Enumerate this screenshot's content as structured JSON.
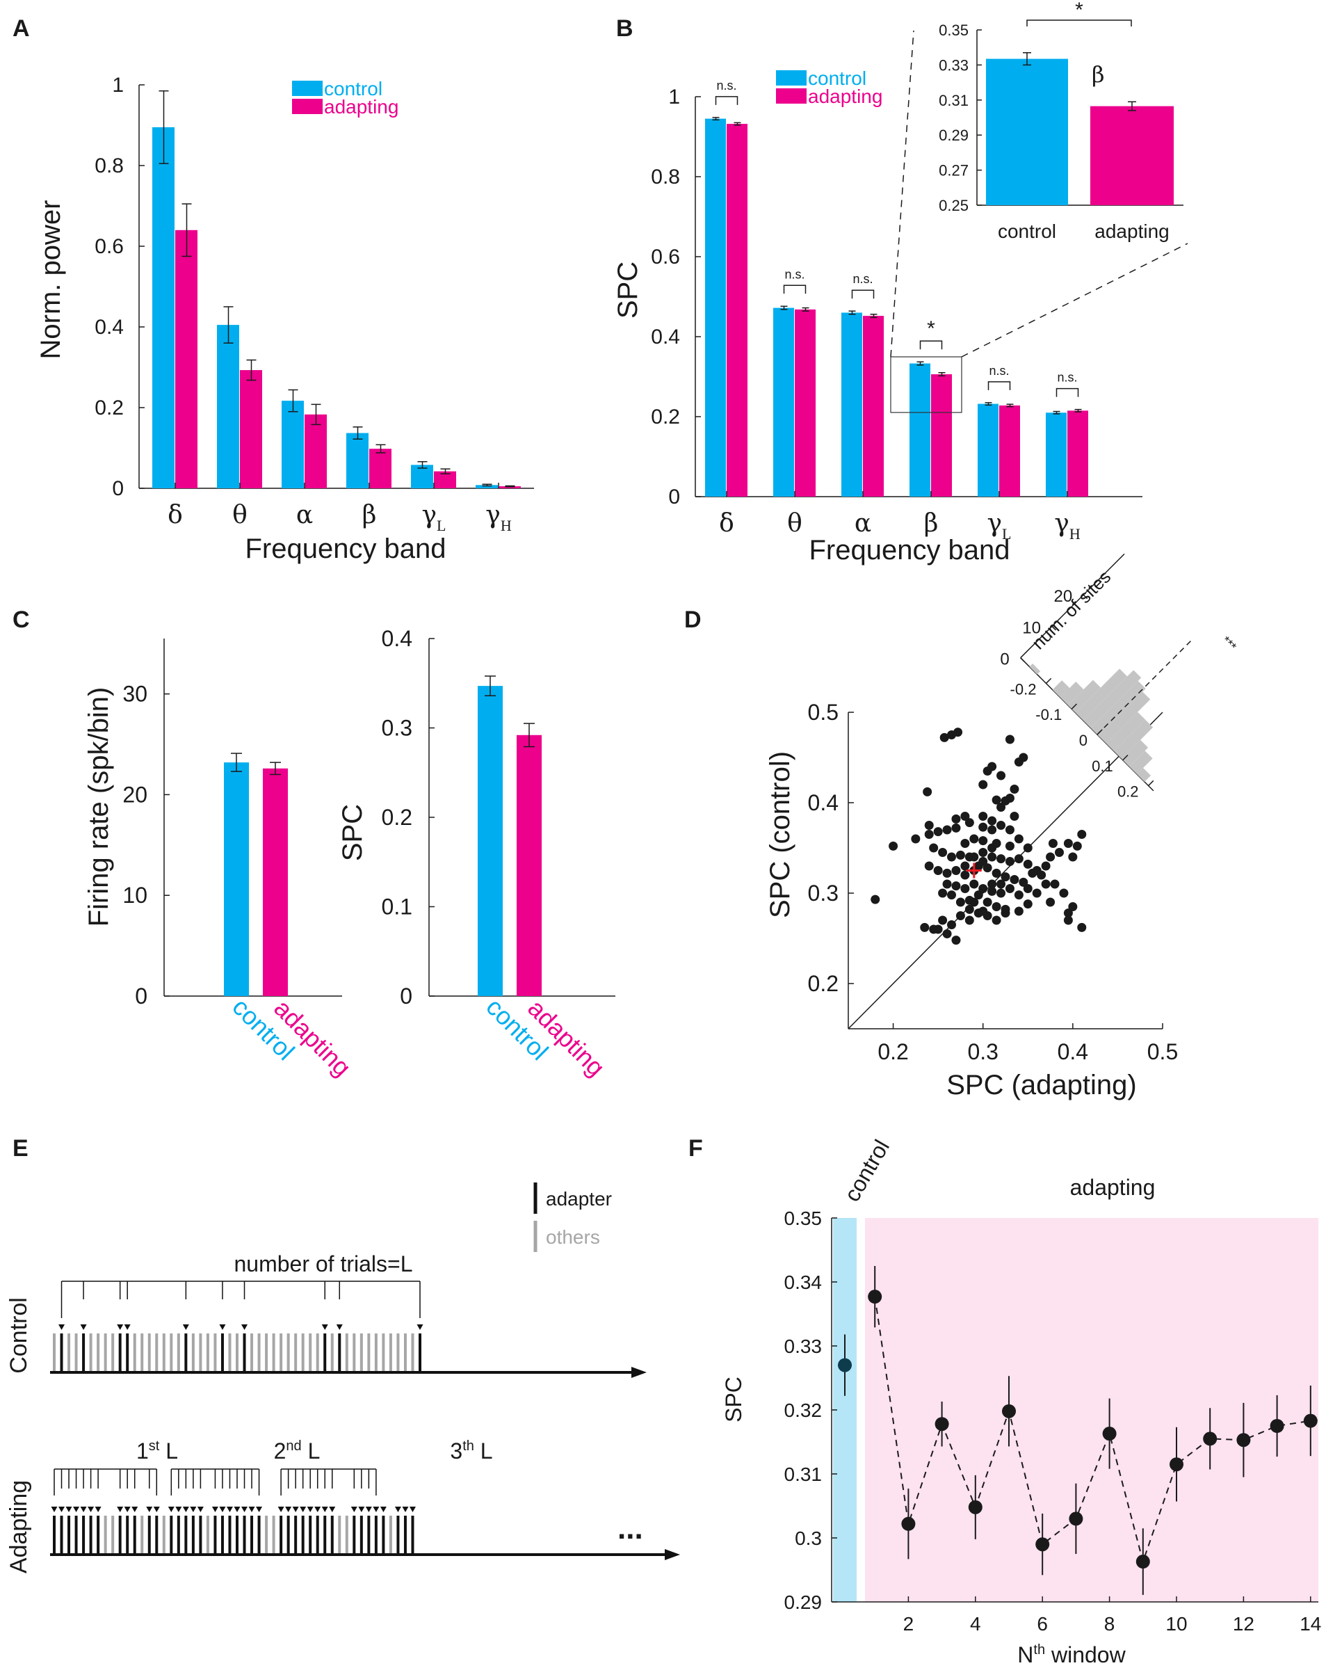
{
  "colors": {
    "control": "#00aeef",
    "adapting": "#ec008c",
    "control_band": "#b4e6f7",
    "adapting_band": "#fde2f0",
    "points": "#1a1a1a",
    "mean": "#ee1c25",
    "hist": "#c4c4c4",
    "trial_others": "#a6a6a6"
  },
  "panels": {
    "A": "A",
    "B": "B",
    "C": "C",
    "D": "D",
    "E": "E",
    "F": "F"
  },
  "bands": [
    {
      "sym": "δ",
      "sub": ""
    },
    {
      "sym": "θ",
      "sub": ""
    },
    {
      "sym": "α",
      "sub": ""
    },
    {
      "sym": "β",
      "sub": ""
    },
    {
      "sym": "γ",
      "sub": "L"
    },
    {
      "sym": "γ",
      "sub": "H"
    }
  ],
  "chart_data": [
    {
      "panel": "A",
      "type": "bar",
      "xlabel": "Frequency band",
      "ylabel": "Norm. power",
      "ylim": [
        0,
        1
      ],
      "yticks": [
        0,
        0.2,
        0.4,
        0.6,
        0.8,
        1
      ],
      "ytick_labels": [
        "0",
        "0.2",
        "0.4",
        "0.6",
        "0.8",
        "1"
      ],
      "categories": [
        "δ",
        "θ",
        "α",
        "β",
        "γL",
        "γH"
      ],
      "legend": [
        "control",
        "adapting"
      ],
      "series": [
        {
          "name": "control",
          "values": [
            0.895,
            0.405,
            0.217,
            0.137,
            0.058,
            0.008
          ],
          "errors": [
            0.09,
            0.045,
            0.027,
            0.015,
            0.008,
            0.002
          ]
        },
        {
          "name": "adapting",
          "values": [
            0.64,
            0.293,
            0.183,
            0.098,
            0.042,
            0.005
          ],
          "errors": [
            0.065,
            0.025,
            0.025,
            0.01,
            0.006,
            0.001
          ]
        }
      ]
    },
    {
      "panel": "B",
      "type": "bar",
      "xlabel": "Frequency band",
      "ylabel": "SPC",
      "ylim": [
        0,
        1
      ],
      "yticks": [
        0,
        0.2,
        0.4,
        0.6,
        0.8,
        1
      ],
      "ytick_labels": [
        "0",
        "0.2",
        "0.4",
        "0.6",
        "0.8",
        "1"
      ],
      "categories": [
        "δ",
        "θ",
        "α",
        "β",
        "γL",
        "γH"
      ],
      "legend": [
        "control",
        "adapting"
      ],
      "series": [
        {
          "name": "control",
          "values": [
            0.945,
            0.472,
            0.46,
            0.333,
            0.232,
            0.21
          ],
          "errors": [
            0.003,
            0.004,
            0.004,
            0.004,
            0.003,
            0.003
          ]
        },
        {
          "name": "adapting",
          "values": [
            0.932,
            0.468,
            0.452,
            0.306,
            0.228,
            0.215
          ],
          "errors": [
            0.003,
            0.004,
            0.004,
            0.004,
            0.003,
            0.003
          ]
        }
      ],
      "significance": [
        "n.s.",
        "n.s.",
        "n.s.",
        "*",
        "n.s.",
        "n.s."
      ],
      "inset": {
        "band_label": "β",
        "ylim": [
          0.25,
          0.35
        ],
        "yticks": [
          0.25,
          0.27,
          0.29,
          0.31,
          0.33,
          0.35
        ],
        "ytick_labels": [
          "0.25",
          "0.27",
          "0.29",
          "0.31",
          "0.33",
          "0.35"
        ],
        "categories": [
          "control",
          "adapting"
        ],
        "values": [
          0.3335,
          0.3065
        ],
        "errors": [
          0.0035,
          0.0025
        ],
        "significance": "*"
      }
    },
    {
      "panel": "C-left",
      "type": "bar",
      "ylabel": "Firing rate (spk/bin)",
      "ylim": [
        0,
        35.5
      ],
      "yticks": [
        0,
        10,
        20,
        30
      ],
      "ytick_labels": [
        "0",
        "10",
        "20",
        "30"
      ],
      "categories": [
        "control",
        "adapting"
      ],
      "values": [
        23.2,
        22.6
      ],
      "errors": [
        0.9,
        0.6
      ]
    },
    {
      "panel": "C-right",
      "type": "bar",
      "ylabel": "SPC",
      "ylim": [
        0,
        0.4
      ],
      "yticks": [
        0,
        0.1,
        0.2,
        0.3,
        0.4
      ],
      "ytick_labels": [
        "0",
        "0.1",
        "0.2",
        "0.3",
        "0.4"
      ],
      "categories": [
        "control",
        "adapting"
      ],
      "values": [
        0.347,
        0.292
      ],
      "errors": [
        0.011,
        0.013
      ]
    },
    {
      "panel": "D",
      "type": "scatter",
      "xlabel": "SPC (adapting)",
      "ylabel": "SPC (control)",
      "xlim": [
        0.15,
        0.5
      ],
      "ylim": [
        0.15,
        0.5
      ],
      "xticks": [
        0.2,
        0.3,
        0.4,
        0.5
      ],
      "xtick_labels": [
        "0.2",
        "0.3",
        "0.4",
        "0.5"
      ],
      "yticks": [
        0.2,
        0.3,
        0.4,
        0.5
      ],
      "ytick_labels": [
        "0.2",
        "0.3",
        "0.4",
        "0.5"
      ],
      "mean_marker": [
        0.29,
        0.325
      ],
      "points": [
        [
          0.18,
          0.293
        ],
        [
          0.265,
          0.475
        ],
        [
          0.257,
          0.472
        ],
        [
          0.272,
          0.478
        ],
        [
          0.33,
          0.47
        ],
        [
          0.34,
          0.445
        ],
        [
          0.345,
          0.45
        ],
        [
          0.3,
          0.42
        ],
        [
          0.305,
          0.435
        ],
        [
          0.32,
          0.43
        ],
        [
          0.31,
          0.44
        ],
        [
          0.335,
          0.415
        ],
        [
          0.238,
          0.412
        ],
        [
          0.32,
          0.395
        ],
        [
          0.33,
          0.405
        ],
        [
          0.315,
          0.403
        ],
        [
          0.28,
          0.385
        ],
        [
          0.225,
          0.36
        ],
        [
          0.2,
          0.352
        ],
        [
          0.27,
          0.382
        ],
        [
          0.325,
          0.402
        ],
        [
          0.335,
          0.385
        ],
        [
          0.31,
          0.38
        ],
        [
          0.3,
          0.385
        ],
        [
          0.285,
          0.378
        ],
        [
          0.32,
          0.375
        ],
        [
          0.33,
          0.37
        ],
        [
          0.24,
          0.365
        ],
        [
          0.25,
          0.368
        ],
        [
          0.26,
          0.37
        ],
        [
          0.27,
          0.372
        ],
        [
          0.3,
          0.373
        ],
        [
          0.31,
          0.37
        ],
        [
          0.29,
          0.36
        ],
        [
          0.28,
          0.355
        ],
        [
          0.315,
          0.355
        ],
        [
          0.33,
          0.352
        ],
        [
          0.34,
          0.36
        ],
        [
          0.35,
          0.35
        ],
        [
          0.245,
          0.35
        ],
        [
          0.255,
          0.345
        ],
        [
          0.265,
          0.34
        ],
        [
          0.275,
          0.342
        ],
        [
          0.285,
          0.34
        ],
        [
          0.3,
          0.345
        ],
        [
          0.31,
          0.34
        ],
        [
          0.32,
          0.338
        ],
        [
          0.33,
          0.335
        ],
        [
          0.34,
          0.338
        ],
        [
          0.35,
          0.332
        ],
        [
          0.36,
          0.325
        ],
        [
          0.37,
          0.33
        ],
        [
          0.378,
          0.355
        ],
        [
          0.385,
          0.345
        ],
        [
          0.395,
          0.355
        ],
        [
          0.405,
          0.352
        ],
        [
          0.41,
          0.365
        ],
        [
          0.4,
          0.34
        ],
        [
          0.375,
          0.34
        ],
        [
          0.24,
          0.33
        ],
        [
          0.25,
          0.325
        ],
        [
          0.26,
          0.322
        ],
        [
          0.27,
          0.325
        ],
        [
          0.28,
          0.33
        ],
        [
          0.295,
          0.33
        ],
        [
          0.305,
          0.328
        ],
        [
          0.315,
          0.322
        ],
        [
          0.325,
          0.318
        ],
        [
          0.335,
          0.315
        ],
        [
          0.345,
          0.312
        ],
        [
          0.355,
          0.322
        ],
        [
          0.365,
          0.32
        ],
        [
          0.37,
          0.31
        ],
        [
          0.26,
          0.31
        ],
        [
          0.27,
          0.308
        ],
        [
          0.28,
          0.305
        ],
        [
          0.29,
          0.31
        ],
        [
          0.3,
          0.305
        ],
        [
          0.31,
          0.302
        ],
        [
          0.32,
          0.3
        ],
        [
          0.33,
          0.305
        ],
        [
          0.34,
          0.298
        ],
        [
          0.35,
          0.305
        ],
        [
          0.36,
          0.3
        ],
        [
          0.375,
          0.29
        ],
        [
          0.38,
          0.31
        ],
        [
          0.39,
          0.3
        ],
        [
          0.395,
          0.278
        ],
        [
          0.4,
          0.285
        ],
        [
          0.255,
          0.3
        ],
        [
          0.265,
          0.298
        ],
        [
          0.275,
          0.29
        ],
        [
          0.285,
          0.292
        ],
        [
          0.295,
          0.298
        ],
        [
          0.305,
          0.29
        ],
        [
          0.315,
          0.285
        ],
        [
          0.325,
          0.282
        ],
        [
          0.34,
          0.28
        ],
        [
          0.35,
          0.288
        ],
        [
          0.235,
          0.262
        ],
        [
          0.245,
          0.26
        ],
        [
          0.255,
          0.27
        ],
        [
          0.265,
          0.265
        ],
        [
          0.275,
          0.275
        ],
        [
          0.285,
          0.27
        ],
        [
          0.295,
          0.278
        ],
        [
          0.305,
          0.275
        ],
        [
          0.315,
          0.27
        ],
        [
          0.325,
          0.278
        ],
        [
          0.27,
          0.248
        ],
        [
          0.26,
          0.255
        ],
        [
          0.25,
          0.26
        ],
        [
          0.285,
          0.282
        ],
        [
          0.3,
          0.28
        ],
        [
          0.31,
          0.31
        ],
        [
          0.32,
          0.31
        ],
        [
          0.29,
          0.29
        ],
        [
          0.28,
          0.32
        ],
        [
          0.29,
          0.325
        ],
        [
          0.3,
          0.335
        ],
        [
          0.31,
          0.35
        ],
        [
          0.3,
          0.358
        ],
        [
          0.29,
          0.34
        ],
        [
          0.41,
          0.262
        ],
        [
          0.395,
          0.27
        ],
        [
          0.24,
          0.375
        ]
      ],
      "inset_histogram": {
        "axis_label": "num. of sites",
        "count_ticks": [
          0,
          10,
          20
        ],
        "count_tick_labels": [
          "0",
          "10",
          "20"
        ],
        "diff_ticks": [
          -0.2,
          -0.1,
          0,
          0.1,
          0.2
        ],
        "diff_tick_labels": [
          "-0.2",
          "-0.1",
          "0",
          "0.1",
          "0.2"
        ],
        "bin_centers": [
          -0.25,
          -0.22,
          -0.19,
          -0.16,
          -0.13,
          -0.1,
          -0.07,
          -0.04,
          -0.01,
          0.02,
          0.05,
          0.08,
          0.11,
          0.14,
          0.17
        ],
        "counts": [
          1,
          0,
          0,
          3,
          5,
          8,
          14,
          16,
          15,
          14,
          10,
          10,
          6,
          5,
          2
        ],
        "significance": "***"
      }
    },
    {
      "panel": "F",
      "type": "scatter",
      "xlabel": "Nth window",
      "ylabel": "SPC",
      "ylim": [
        0.29,
        0.35
      ],
      "xlim": [
        0,
        14.3
      ],
      "yticks": [
        0.29,
        0.3,
        0.31,
        0.32,
        0.33,
        0.34,
        0.35
      ],
      "ytick_labels": [
        "0.29",
        "0.3",
        "0.31",
        "0.32",
        "0.33",
        "0.34",
        "0.35"
      ],
      "xticks": [
        2,
        4,
        6,
        8,
        10,
        12,
        14
      ],
      "xtick_labels": [
        "2",
        "4",
        "6",
        "8",
        "10",
        "12",
        "14"
      ],
      "control": {
        "label": "control",
        "value": 0.327,
        "error": 0.0048
      },
      "adapting": {
        "label": "adapting",
        "x": [
          1,
          2,
          3,
          4,
          5,
          6,
          7,
          8,
          9,
          10,
          11,
          12,
          13,
          14
        ],
        "values": [
          0.3377,
          0.3022,
          0.3178,
          0.3048,
          0.3198,
          0.299,
          0.303,
          0.3163,
          0.2963,
          0.3115,
          0.3155,
          0.3153,
          0.3175,
          0.3183
        ],
        "errors": [
          0.0048,
          0.0055,
          0.0035,
          0.005,
          0.0055,
          0.0048,
          0.0055,
          0.0055,
          0.0052,
          0.0058,
          0.0048,
          0.0058,
          0.0048,
          0.0055
        ]
      }
    }
  ],
  "panel_E": {
    "legend": [
      "adapter",
      "others"
    ],
    "control_row_label": "Control",
    "adapting_row_label": "Adapting",
    "bracket_label": "number of trials=L",
    "window_labels": [
      {
        "num": "1",
        "sup": "st",
        "suffix": " L"
      },
      {
        "num": "2",
        "sup": "nd",
        "suffix": " L"
      },
      {
        "num": "3",
        "sup": "th",
        "suffix": " L"
      }
    ],
    "ellipsis": "...",
    "control_trials": [
      "o",
      "A",
      "o",
      "o",
      "A",
      "o",
      "o",
      "o",
      "o",
      "A",
      "A",
      "o",
      "o",
      "o",
      "o",
      "o",
      "o",
      "o",
      "A",
      "o",
      "o",
      "o",
      "o",
      "A",
      "o",
      "o",
      "A",
      "o",
      "o",
      "o",
      "o",
      "o",
      "o",
      "o",
      "o",
      "o",
      "o",
      "A",
      "o",
      "A",
      "o",
      "o",
      "o",
      "o",
      "o",
      "o",
      "o",
      "o",
      "o",
      "o",
      "A"
    ],
    "adapting_trials": [
      "A",
      "A",
      "A",
      "A",
      "A",
      "A",
      "A",
      "o",
      "o",
      "A",
      "A",
      "A",
      "o",
      "A",
      "A",
      "o",
      "A",
      "A",
      "A",
      "A",
      "A",
      "o",
      "A",
      "A",
      "A",
      "A",
      "A",
      "A",
      "A",
      "o",
      "o",
      "A",
      "A",
      "A",
      "A",
      "A",
      "A",
      "A",
      "A",
      "o",
      "o",
      "A",
      "A",
      "A",
      "A",
      "A",
      "o",
      "A",
      "A",
      "A"
    ]
  }
}
